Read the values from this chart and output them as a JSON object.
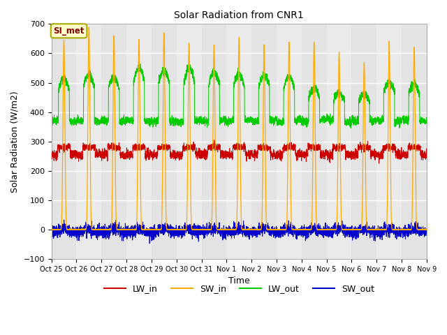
{
  "title": "Solar Radiation from CNR1",
  "xlabel": "Time",
  "ylabel": "Solar Radiation (W/m2)",
  "ylim": [
    -100,
    700
  ],
  "yticks": [
    -100,
    0,
    100,
    200,
    300,
    400,
    500,
    600,
    700
  ],
  "xtick_labels": [
    "Oct 25",
    "Oct 26",
    "Oct 27",
    "Oct 28",
    "Oct 29",
    "Oct 30",
    "Oct 31",
    "Nov 1",
    "Nov 2",
    "Nov 3",
    "Nov 4",
    "Nov 5",
    "Nov 6",
    "Nov 7",
    "Nov 8",
    "Nov 9"
  ],
  "legend_entries": [
    "LW_in",
    "SW_in",
    "LW_out",
    "SW_out"
  ],
  "legend_colors": [
    "#cc0000",
    "#ffaa00",
    "#00cc00",
    "#0000cc"
  ],
  "annotation_text": "SI_met",
  "annotation_bg": "#ffffcc",
  "annotation_border": "#aaaa00",
  "annotation_fg": "#880000",
  "fig_bg": "#ffffff",
  "plot_bg": "#e8e8e8",
  "grid_color": "#d0d0d0",
  "lw_in_color": "#cc0000",
  "sw_in_color": "#ffaa00",
  "lw_out_color": "#00cc00",
  "sw_out_color": "#0000cc",
  "n_days": 15,
  "spd": 288,
  "seed": 42,
  "sw_peaks": [
    645,
    690,
    660,
    648,
    670,
    635,
    628,
    655,
    630,
    640,
    638,
    605,
    570,
    642,
    623
  ],
  "lw_out_night": 370,
  "lw_in_day": 280
}
